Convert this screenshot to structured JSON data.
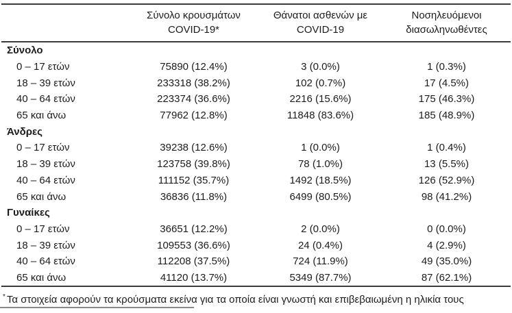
{
  "table": {
    "header": {
      "cases_line1": "Σύνολο κρουσμάτων",
      "cases_line2": "COVID-19*",
      "deaths_line1": "Θάνατοι ασθενών με",
      "deaths_line2": "COVID-19",
      "intubated_line1": "Νοσηλευόμενοι",
      "intubated_line2": "διασωληνωθέντες"
    },
    "sections": [
      {
        "label": "Σύνολο",
        "rows": [
          {
            "age": "0 – 17 ετών",
            "cases": "75890 (12.4%)",
            "deaths": "3 (0.0%)",
            "intubated": "1 (0.3%)"
          },
          {
            "age": "18 – 39 ετών",
            "cases": "233318 (38.2%)",
            "deaths": "102 (0.7%)",
            "intubated": "17 (4.5%)"
          },
          {
            "age": "40 – 64 ετών",
            "cases": "223374 (36.6%)",
            "deaths": "2216 (15.6%)",
            "intubated": "175 (46.3%)"
          },
          {
            "age": "65 και άνω",
            "cases": "77962 (12.8%)",
            "deaths": "11848 (83.6%)",
            "intubated": "185 (48.9%)"
          }
        ]
      },
      {
        "label": "Άνδρες",
        "rows": [
          {
            "age": "0 – 17 ετών",
            "cases": "39238 (12.6%)",
            "deaths": "1 (0.0%)",
            "intubated": "1 (0.4%)"
          },
          {
            "age": "18 – 39 ετών",
            "cases": "123758 (39.8%)",
            "deaths": "78 (1.0%)",
            "intubated": "13 (5.5%)"
          },
          {
            "age": "40 – 64 ετών",
            "cases": "111152 (35.7%)",
            "deaths": "1492 (18.5%)",
            "intubated": "126 (52.9%)"
          },
          {
            "age": "65 και άνω",
            "cases": "36836 (11.8%)",
            "deaths": "6499 (80.5%)",
            "intubated": "98 (41.2%)"
          }
        ]
      },
      {
        "label": "Γυναίκες",
        "rows": [
          {
            "age": "0 – 17 ετών",
            "cases": "36651 (12.2%)",
            "deaths": "2 (0.0%)",
            "intubated": "0 (0.0%)"
          },
          {
            "age": "18 – 39 ετών",
            "cases": "109553 (36.6%)",
            "deaths": "24 (0.4%)",
            "intubated": "4 (2.9%)"
          },
          {
            "age": "40 – 64 ετών",
            "cases": "112208 (37.5%)",
            "deaths": "724 (11.9%)",
            "intubated": "49 (35.0%)"
          },
          {
            "age": "65 και άνω",
            "cases": "41120 (13.7%)",
            "deaths": "5349 (87.7%)",
            "intubated": "87 (62.1%)"
          }
        ]
      }
    ],
    "footnote_marker": "*",
    "footnote": "Τα στοιχεία αφορούν τα κρούσματα εκείνα για τα οποία είναι γνωστή και επιβεβαιωμένη η ηλικία τους"
  }
}
